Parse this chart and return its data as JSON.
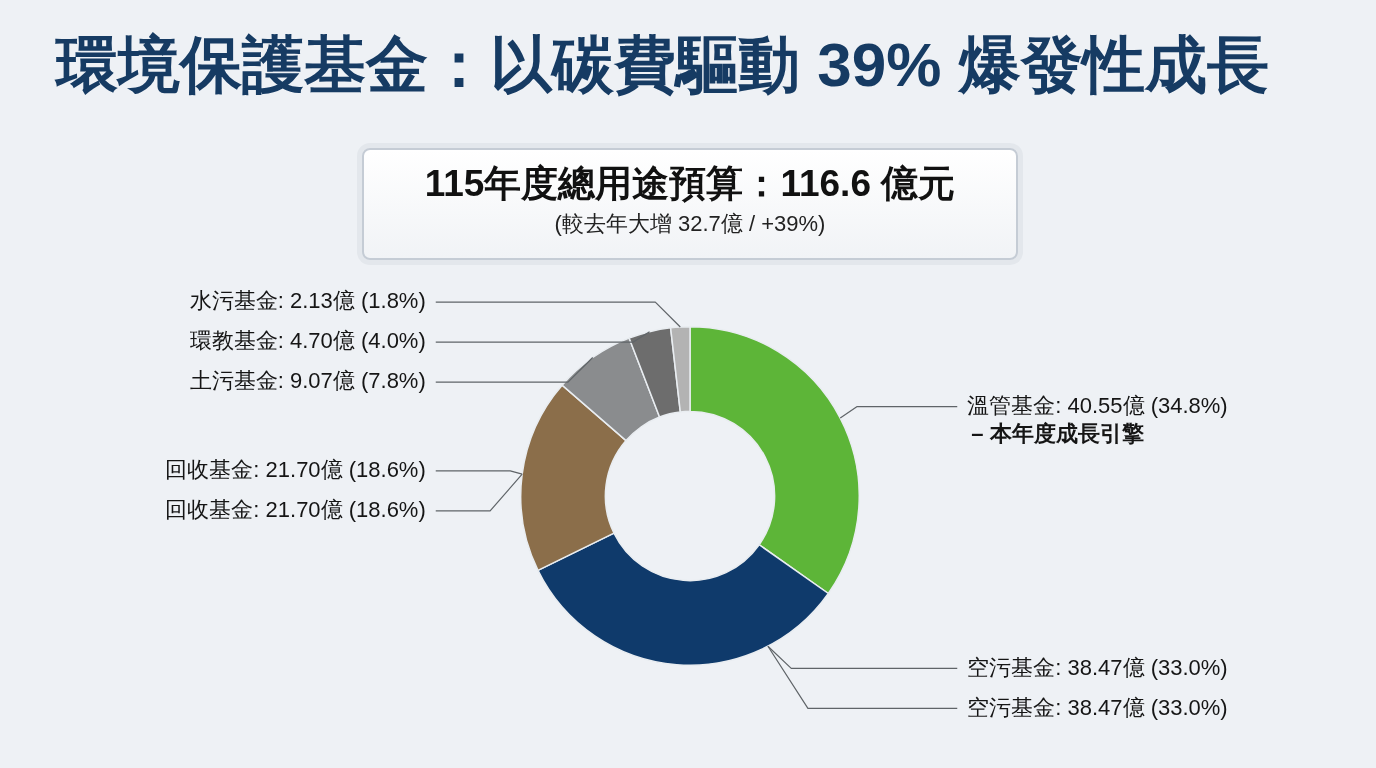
{
  "chart_data": {
    "type": "donut",
    "title": "環境保護基金：以碳費驅動 39% 爆發性成長",
    "subtitle": "115年度總用途預算：116.6 億元",
    "categories": [
      "溫管基金",
      "空污基金",
      "回收基金",
      "土污基金",
      "環教基金",
      "水污基金"
    ],
    "values": [
      40.55,
      38.47,
      21.7,
      9.07,
      4.7,
      2.13
    ],
    "colors": [
      "#5db538",
      "#0f3a6b",
      "#8b6e4a",
      "#8a8c8e",
      "#6d6d6d",
      "#b3b3b3"
    ],
    "value_labels": [
      "40.55億 (34.8%)\n– 本年度成長引擎",
      "38.47億 (33.0%)",
      "21.70億 (18.6%)",
      "9.07億 (7.8%)",
      "4.70億 (4.0%)",
      "2.13億 (1.8%)"
    ],
    "annotations": [
      "(較去年大增 32.7億 / +39%)",
      {
        "text": "回收基金: 21.70億 (18.6%)",
        "x": "回收基金"
      },
      {
        "text": "空污基金: 38.47億 (33.0%)",
        "x": "空污基金"
      }
    ]
  }
}
